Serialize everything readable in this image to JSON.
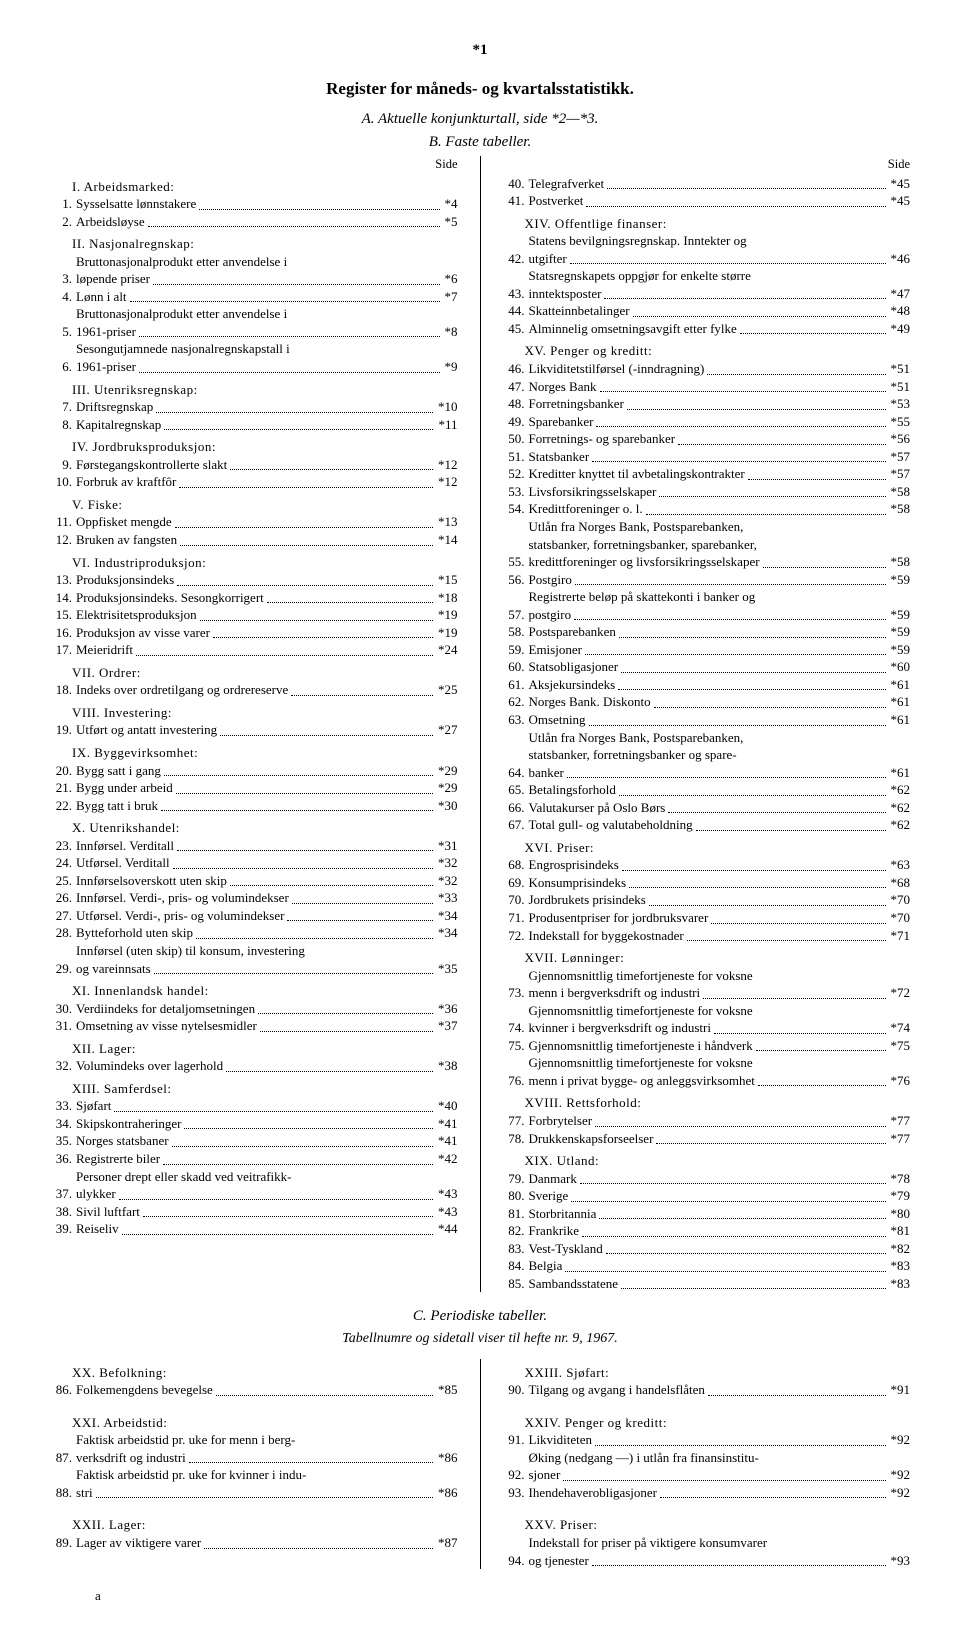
{
  "page_marker": "*1",
  "main_title": "Register for måneds- og kvartalsstatistikk.",
  "part_a_title": "A. Aktuelle konjunkturtall, side *2—*3.",
  "part_b_title": "B. Faste tabeller.",
  "side_label": "Side",
  "part_c_title": "C. Periodiske tabeller.",
  "part_c_sub": "Tabellnumre og sidetall viser til hefte nr. 9, 1967.",
  "footer": "a",
  "left": [
    {
      "type": "group",
      "text": "I. Arbeidsmarked:"
    },
    {
      "type": "entry",
      "n": "1.",
      "t": "Sysselsatte lønnstakere",
      "p": "*4"
    },
    {
      "type": "entry",
      "n": "2.",
      "t": "Arbeidsløyse",
      "p": "*5"
    },
    {
      "type": "group",
      "text": "II. Nasjonalregnskap:"
    },
    {
      "type": "entry2",
      "n": "3.",
      "t1": "Bruttonasjonalprodukt etter anvendelse i",
      "t2": "løpende priser",
      "p": "*6"
    },
    {
      "type": "entry",
      "n": "4.",
      "t": "Lønn i alt",
      "p": "*7"
    },
    {
      "type": "entry2",
      "n": "5.",
      "t1": "Bruttonasjonalprodukt etter anvendelse i",
      "t2": "1961-priser",
      "p": "*8"
    },
    {
      "type": "entry2",
      "n": "6.",
      "t1": "Sesongutjamnede nasjonalregnskapstall i",
      "t2": "1961-priser",
      "p": "*9"
    },
    {
      "type": "group",
      "text": "III. Utenriksregnskap:"
    },
    {
      "type": "entry",
      "n": "7.",
      "t": "Driftsregnskap",
      "p": "*10"
    },
    {
      "type": "entry",
      "n": "8.",
      "t": "Kapitalregnskap",
      "p": "*11"
    },
    {
      "type": "group",
      "text": "IV. Jordbruksproduksjon:"
    },
    {
      "type": "entry",
      "n": "9.",
      "t": "Førstegangskontrollerte slakt",
      "p": "*12"
    },
    {
      "type": "entry",
      "n": "10.",
      "t": "Forbruk av kraftfôr",
      "p": "*12"
    },
    {
      "type": "group",
      "text": "V. Fiske:"
    },
    {
      "type": "entry",
      "n": "11.",
      "t": "Oppfisket mengde",
      "p": "*13"
    },
    {
      "type": "entry",
      "n": "12.",
      "t": "Bruken av fangsten",
      "p": "*14"
    },
    {
      "type": "group",
      "text": "VI. Industriproduksjon:"
    },
    {
      "type": "entry",
      "n": "13.",
      "t": "Produksjonsindeks",
      "p": "*15"
    },
    {
      "type": "entry",
      "n": "14.",
      "t": "Produksjonsindeks. Sesongkorrigert",
      "p": "*18"
    },
    {
      "type": "entry",
      "n": "15.",
      "t": "Elektrisitetsproduksjon",
      "p": "*19"
    },
    {
      "type": "entry",
      "n": "16.",
      "t": "Produksjon av visse varer",
      "p": "*19"
    },
    {
      "type": "entry",
      "n": "17.",
      "t": "Meieridrift",
      "p": "*24"
    },
    {
      "type": "group",
      "text": "VII. Ordrer:"
    },
    {
      "type": "entry",
      "n": "18.",
      "t": "Indeks over ordretilgang og ordrereserve",
      "p": "*25"
    },
    {
      "type": "group",
      "text": "VIII. Investering:"
    },
    {
      "type": "entry",
      "n": "19.",
      "t": "Utført og antatt investering",
      "p": "*27"
    },
    {
      "type": "group",
      "text": "IX. Byggevirksomhet:"
    },
    {
      "type": "entry",
      "n": "20.",
      "t": "Bygg satt i gang",
      "p": "*29"
    },
    {
      "type": "entry",
      "n": "21.",
      "t": "Bygg under arbeid",
      "p": "*29"
    },
    {
      "type": "entry",
      "n": "22.",
      "t": "Bygg tatt i bruk",
      "p": "*30"
    },
    {
      "type": "group",
      "text": "X. Utenrikshandel:"
    },
    {
      "type": "entry",
      "n": "23.",
      "t": "Innførsel. Verditall",
      "p": "*31"
    },
    {
      "type": "entry",
      "n": "24.",
      "t": "Utførsel. Verditall",
      "p": "*32"
    },
    {
      "type": "entry",
      "n": "25.",
      "t": "Innførselsoverskott uten skip",
      "p": "*32"
    },
    {
      "type": "entry",
      "n": "26.",
      "t": "Innførsel. Verdi-, pris- og volumindekser",
      "p": "*33"
    },
    {
      "type": "entry",
      "n": "27.",
      "t": "Utførsel. Verdi-, pris- og volumindekser",
      "p": "*34"
    },
    {
      "type": "entry",
      "n": "28.",
      "t": "Bytteforhold uten skip",
      "p": "*34"
    },
    {
      "type": "entry2",
      "n": "29.",
      "t1": "Innførsel (uten skip) til konsum, investering",
      "t2": "og vareinnsats",
      "p": "*35"
    },
    {
      "type": "group",
      "text": "XI. Innenlandsk handel:"
    },
    {
      "type": "entry",
      "n": "30.",
      "t": "Verdiindeks for detaljomsetningen",
      "p": "*36"
    },
    {
      "type": "entry",
      "n": "31.",
      "t": "Omsetning av visse nytelsesmidler",
      "p": "*37"
    },
    {
      "type": "group",
      "text": "XII. Lager:"
    },
    {
      "type": "entry",
      "n": "32.",
      "t": "Volumindeks over lagerhold",
      "p": "*38"
    },
    {
      "type": "group",
      "text": "XIII. Samferdsel:"
    },
    {
      "type": "entry",
      "n": "33.",
      "t": "Sjøfart",
      "p": "*40"
    },
    {
      "type": "entry",
      "n": "34.",
      "t": "Skipskontraheringer",
      "p": "*41"
    },
    {
      "type": "entry",
      "n": "35.",
      "t": "Norges statsbaner",
      "p": "*41"
    },
    {
      "type": "entry",
      "n": "36.",
      "t": "Registrerte biler",
      "p": "*42"
    },
    {
      "type": "entry2",
      "n": "37.",
      "t1": "Personer drept eller skadd ved veitrafikk-",
      "t2": "ulykker",
      "p": "*43"
    },
    {
      "type": "entry",
      "n": "38.",
      "t": "Sivil luftfart",
      "p": "*43"
    },
    {
      "type": "entry",
      "n": "39.",
      "t": "Reiseliv",
      "p": "*44"
    }
  ],
  "right": [
    {
      "type": "entry",
      "n": "40.",
      "t": "Telegrafverket",
      "p": "*45"
    },
    {
      "type": "entry",
      "n": "41.",
      "t": "Postverket",
      "p": "*45"
    },
    {
      "type": "group",
      "text": "XIV. Offentlige finanser:"
    },
    {
      "type": "entry2",
      "n": "42.",
      "t1": "Statens bevilgningsregnskap. Inntekter og",
      "t2": "utgifter",
      "p": "*46"
    },
    {
      "type": "entry2",
      "n": "43.",
      "t1": "Statsregnskapets oppgjør for enkelte større",
      "t2": "inntektsposter",
      "p": "*47"
    },
    {
      "type": "entry",
      "n": "44.",
      "t": "Skatteinnbetalinger",
      "p": "*48"
    },
    {
      "type": "entry",
      "n": "45.",
      "t": "Alminnelig omsetningsavgift etter fylke",
      "p": "*49"
    },
    {
      "type": "group",
      "text": "XV. Penger og kreditt:"
    },
    {
      "type": "entry",
      "n": "46.",
      "t": "Likviditetstilførsel (-inndragning)",
      "p": "*51"
    },
    {
      "type": "entry",
      "n": "47.",
      "t": "Norges Bank",
      "p": "*51"
    },
    {
      "type": "entry",
      "n": "48.",
      "t": "Forretningsbanker",
      "p": "*53"
    },
    {
      "type": "entry",
      "n": "49.",
      "t": "Sparebanker",
      "p": "*55"
    },
    {
      "type": "entry",
      "n": "50.",
      "t": "Forretnings- og sparebanker",
      "p": "*56"
    },
    {
      "type": "entry",
      "n": "51.",
      "t": "Statsbanker",
      "p": "*57"
    },
    {
      "type": "entry",
      "n": "52.",
      "t": "Kreditter knyttet til avbetalingskontrakter",
      "p": "*57"
    },
    {
      "type": "entry",
      "n": "53.",
      "t": "Livsforsikringsselskaper",
      "p": "*58"
    },
    {
      "type": "entry",
      "n": "54.",
      "t": "Kredittforeninger o. l.",
      "p": "*58"
    },
    {
      "type": "entry3",
      "n": "55.",
      "t1": "Utlån fra Norges Bank, Postsparebanken,",
      "t2": "statsbanker, forretningsbanker, sparebanker,",
      "t3": "kredittforeninger og livsforsikringsselskaper",
      "p": "*58"
    },
    {
      "type": "entry",
      "n": "56.",
      "t": "Postgiro",
      "p": "*59"
    },
    {
      "type": "entry2",
      "n": "57.",
      "t1": "Registrerte beløp på skattekonti i banker og",
      "t2": "postgiro",
      "p": "*59"
    },
    {
      "type": "entry",
      "n": "58.",
      "t": "Postsparebanken",
      "p": "*59"
    },
    {
      "type": "entry",
      "n": "59.",
      "t": "Emisjoner",
      "p": "*59"
    },
    {
      "type": "entry",
      "n": "60.",
      "t": "Statsobligasjoner",
      "p": "*60"
    },
    {
      "type": "entry",
      "n": "61.",
      "t": "Aksjekursindeks",
      "p": "*61"
    },
    {
      "type": "entry",
      "n": "62.",
      "t": "Norges Bank. Diskonto",
      "p": "*61"
    },
    {
      "type": "entry",
      "n": "63.",
      "t": "Omsetning",
      "p": "*61"
    },
    {
      "type": "entry3",
      "n": "64.",
      "t1": "Utlån fra Norges Bank, Postsparebanken,",
      "t2": "statsbanker, forretningsbanker og spare-",
      "t3": "banker",
      "p": "*61"
    },
    {
      "type": "entry",
      "n": "65.",
      "t": "Betalingsforhold",
      "p": "*62"
    },
    {
      "type": "entry",
      "n": "66.",
      "t": "Valutakurser på Oslo Børs",
      "p": "*62"
    },
    {
      "type": "entry",
      "n": "67.",
      "t": "Total gull- og valutabeholdning",
      "p": "*62"
    },
    {
      "type": "group",
      "text": "XVI. Priser:"
    },
    {
      "type": "entry",
      "n": "68.",
      "t": "Engrosprisindeks",
      "p": "*63"
    },
    {
      "type": "entry",
      "n": "69.",
      "t": "Konsumprisindeks",
      "p": "*68"
    },
    {
      "type": "entry",
      "n": "70.",
      "t": "Jordbrukets prisindeks",
      "p": "*70"
    },
    {
      "type": "entry",
      "n": "71.",
      "t": "Produsentpriser for jordbruksvarer",
      "p": "*70"
    },
    {
      "type": "entry",
      "n": "72.",
      "t": "Indekstall for byggekostnader",
      "p": "*71"
    },
    {
      "type": "group",
      "text": "XVII. Lønninger:"
    },
    {
      "type": "entry2",
      "n": "73.",
      "t1": "Gjennomsnittlig timefortjeneste for voksne",
      "t2": "menn i bergverksdrift og industri",
      "p": "*72"
    },
    {
      "type": "entry2",
      "n": "74.",
      "t1": "Gjennomsnittlig timefortjeneste for voksne",
      "t2": "kvinner i bergverksdrift og industri",
      "p": "*74"
    },
    {
      "type": "entry",
      "n": "75.",
      "t": "Gjennomsnittlig timefortjeneste i håndverk",
      "p": "*75"
    },
    {
      "type": "entry2",
      "n": "76.",
      "t1": "Gjennomsnittlig timefortjeneste for voksne",
      "t2": "menn i privat bygge- og anleggsvirksomhet",
      "p": "*76"
    },
    {
      "type": "group",
      "text": "XVIII. Rettsforhold:"
    },
    {
      "type": "entry",
      "n": "77.",
      "t": "Forbrytelser",
      "p": "*77"
    },
    {
      "type": "entry",
      "n": "78.",
      "t": "Drukkenskapsforseelser",
      "p": "*77"
    },
    {
      "type": "group",
      "text": "XIX. Utland:"
    },
    {
      "type": "entry",
      "n": "79.",
      "t": "Danmark",
      "p": "*78"
    },
    {
      "type": "entry",
      "n": "80.",
      "t": "Sverige",
      "p": "*79"
    },
    {
      "type": "entry",
      "n": "81.",
      "t": "Storbritannia",
      "p": "*80"
    },
    {
      "type": "entry",
      "n": "82.",
      "t": "Frankrike",
      "p": "*81"
    },
    {
      "type": "entry",
      "n": "83.",
      "t": "Vest-Tyskland",
      "p": "*82"
    },
    {
      "type": "entry",
      "n": "84.",
      "t": "Belgia",
      "p": "*83"
    },
    {
      "type": "entry",
      "n": "85.",
      "t": "Sambandsstatene",
      "p": "*83"
    }
  ],
  "c_left": [
    {
      "type": "group",
      "text": "XX. Befolkning:"
    },
    {
      "type": "entry",
      "n": "86.",
      "t": "Folkemengdens bevegelse",
      "p": "*85"
    },
    {
      "type": "gap"
    },
    {
      "type": "group",
      "text": "XXI. Arbeidstid:"
    },
    {
      "type": "entry2",
      "n": "87.",
      "t1": "Faktisk arbeidstid pr. uke for menn i berg-",
      "t2": "verksdrift og industri",
      "p": "*86"
    },
    {
      "type": "entry2",
      "n": "88.",
      "t1": "Faktisk arbeidstid pr. uke for kvinner i indu-",
      "t2": "stri",
      "p": "*86"
    },
    {
      "type": "gap"
    },
    {
      "type": "group",
      "text": "XXII. Lager:"
    },
    {
      "type": "entry",
      "n": "89.",
      "t": "Lager av viktigere varer",
      "p": "*87"
    }
  ],
  "c_right": [
    {
      "type": "group",
      "text": "XXIII. Sjøfart:"
    },
    {
      "type": "entry",
      "n": "90.",
      "t": "Tilgang og avgang i handelsflåten",
      "p": "*91"
    },
    {
      "type": "gap"
    },
    {
      "type": "group",
      "text": "XXIV. Penger og kreditt:"
    },
    {
      "type": "entry",
      "n": "91.",
      "t": "Likviditeten",
      "p": "*92"
    },
    {
      "type": "entry2",
      "n": "92.",
      "t1": "Øking (nedgang —) i utlån fra finansinstitu-",
      "t2": "sjoner",
      "p": "*92"
    },
    {
      "type": "entry",
      "n": "93.",
      "t": "Ihendehaverobligasjoner",
      "p": "*92"
    },
    {
      "type": "gap"
    },
    {
      "type": "group",
      "text": "XXV. Priser:"
    },
    {
      "type": "entry2",
      "n": "94.",
      "t1": "Indekstall for priser på viktigere konsumvarer",
      "t2": "og tjenester",
      "p": "*93"
    }
  ]
}
